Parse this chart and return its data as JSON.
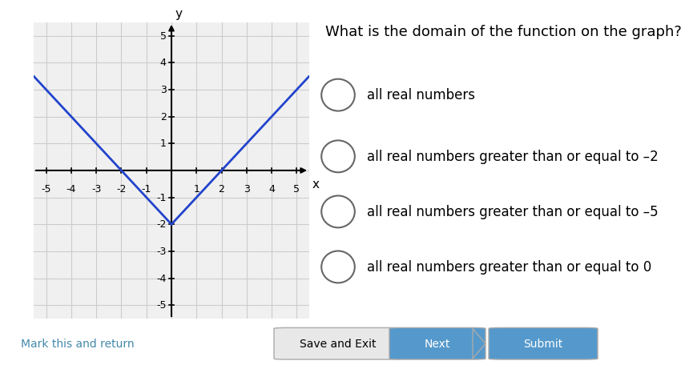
{
  "bg_color": "#ffffff",
  "graph_bg": "#f0f0f0",
  "grid_color": "#cccccc",
  "axis_color": "#000000",
  "line_color": "#2244cc",
  "xlim": [
    -5.5,
    5.5
  ],
  "ylim": [
    -5.5,
    5.5
  ],
  "xticks": [
    -5,
    -4,
    -3,
    -2,
    -1,
    1,
    2,
    3,
    4,
    5
  ],
  "yticks": [
    -5,
    -4,
    -3,
    -2,
    -1,
    1,
    2,
    3,
    4,
    5
  ],
  "vertex_x": 0,
  "vertex_y": -2,
  "question": "What is the domain of the function on the graph?",
  "options": [
    "all real numbers",
    "all real numbers greater than or equal to –2",
    "all real numbers greater than or equal to –5",
    "all real numbers greater than or equal to 0"
  ],
  "bottom_bar_color": "#e0e0e0",
  "btn_save_color": "#e8e8e8",
  "btn_next_color": "#5599cc",
  "btn_submit_color": "#5599cc",
  "link_color": "#4488aa",
  "title_fontsize": 13,
  "option_fontsize": 12
}
